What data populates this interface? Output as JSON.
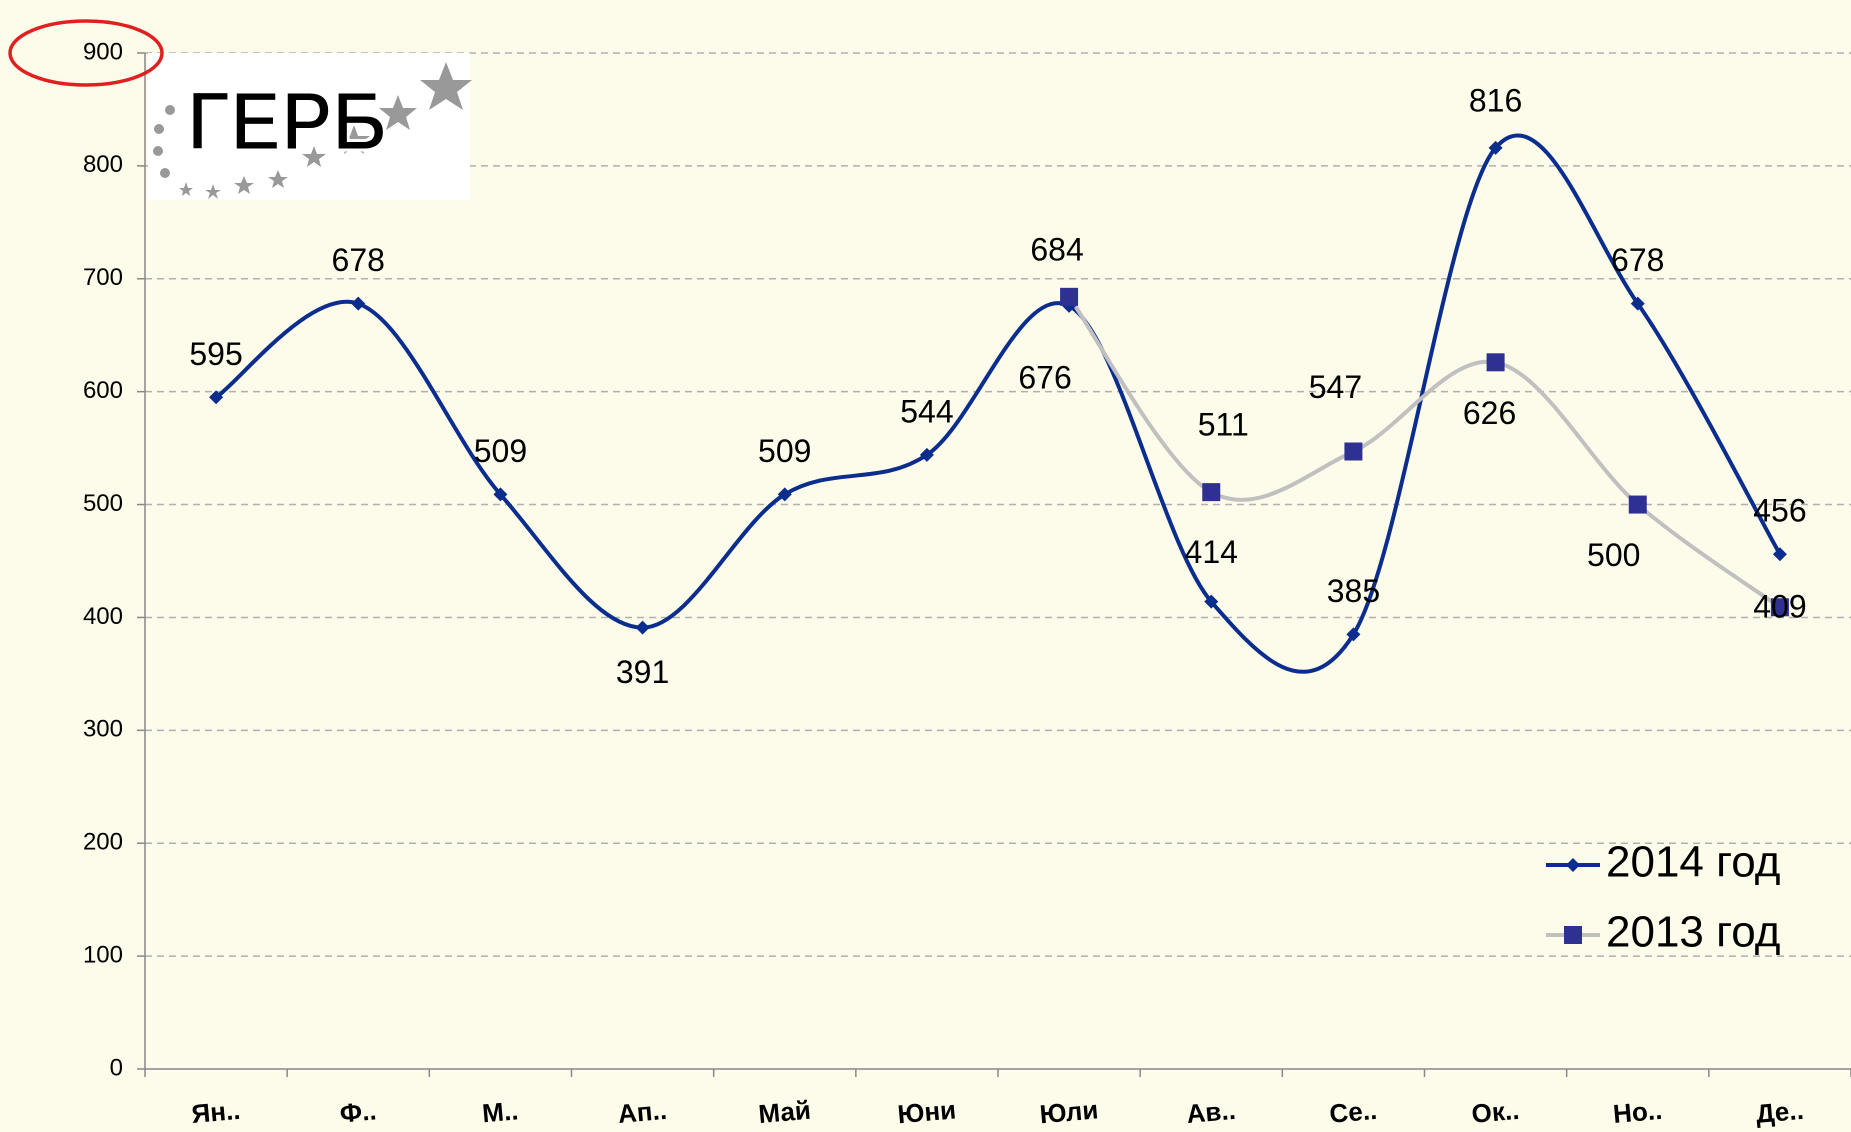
{
  "chart_data": {
    "type": "line",
    "smooth": true,
    "logo": "ГЕРБ",
    "categories": [
      "Ян..",
      "Ф..",
      "М..",
      "Ап..",
      "Май",
      "Юни",
      "Юли",
      "Ав..",
      "Се..",
      "Ок..",
      "Но..",
      "Де.."
    ],
    "series": [
      {
        "name": "2014 год",
        "color": "#0b2e8e",
        "marker": "diamond",
        "marker_color": "#0b2e8e",
        "values": [
          595,
          678,
          509,
          391,
          509,
          544,
          676,
          414,
          385,
          816,
          678,
          456
        ]
      },
      {
        "name": "2013 год",
        "color": "#c0c0c0",
        "marker": "square",
        "marker_color": "#2e3192",
        "values": [
          null,
          null,
          null,
          null,
          null,
          null,
          684,
          511,
          547,
          626,
          500,
          409
        ]
      }
    ],
    "ylim": [
      0,
      900
    ],
    "yticks": [
      0,
      100,
      200,
      300,
      400,
      500,
      600,
      700,
      800,
      900
    ],
    "grid": true,
    "legend": "lower right"
  }
}
